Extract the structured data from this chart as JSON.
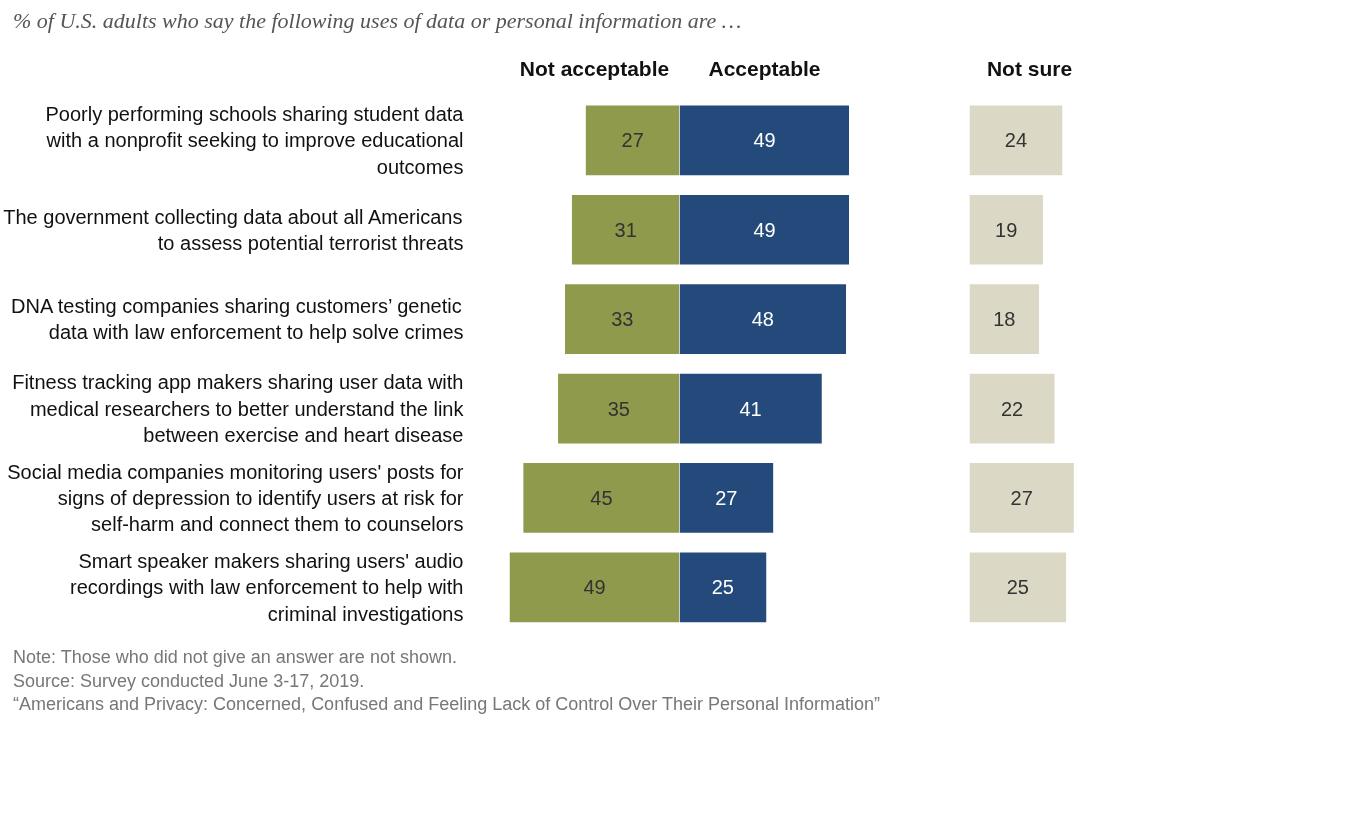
{
  "chart_data": [
    {
      "type": "bar",
      "orientation": "horizontal",
      "data_labels": true,
      "tick_labels": "y",
      "xlim": [
        49,
        0
      ],
      "title": "Not acceptable",
      "categories": [
        "Poorly performing schools sharing student data with a nonprofit seeking to improve educational outcomes",
        "The government collecting data about all Americans to assess potential terrorist threats",
        "DNA testing companies sharing customers’ genetic data with law enforcement to help solve crimes",
        "Fitness tracking app makers sharing user data with medical researchers to better understand the link between exercise and heart disease",
        "Social media companies monitoring users' posts for signs of depression to identify users at risk for self-harm and connect them to counselors",
        "Smart speaker makers sharing users' audio recordings with law enforcement to help with criminal investigations"
      ],
      "values": [
        27,
        31,
        33,
        35,
        45,
        49
      ],
      "color": "#8f9a4c",
      "annotations": [
        "% of U.S. adults who say the following uses of data or personal information are …",
        "Note: Those who did not give an answer are not shown.",
        "Source: Survey conducted June 3-17, 2019.",
        "“Americans and Privacy: Concerned, Confused and Feeling Lack of Control Over Their Personal Information”"
      ]
    },
    {
      "type": "bar",
      "orientation": "horizontal",
      "data_labels": true,
      "tick_labels": false,
      "xlim": [
        0,
        49
      ],
      "title": "Acceptable",
      "categories": [
        null,
        null,
        null,
        null,
        null,
        null
      ],
      "values": [
        49,
        49,
        48,
        41,
        27,
        25
      ],
      "color": "#234a7b"
    },
    {
      "type": "bar",
      "orientation": "horizontal",
      "data_labels": true,
      "tick_labels": false,
      "title": "Not sure",
      "categories": [
        null,
        null,
        null,
        null,
        null,
        null
      ],
      "values": [
        24,
        19,
        18,
        22,
        27,
        25
      ],
      "color": "#dcd8c6"
    }
  ]
}
